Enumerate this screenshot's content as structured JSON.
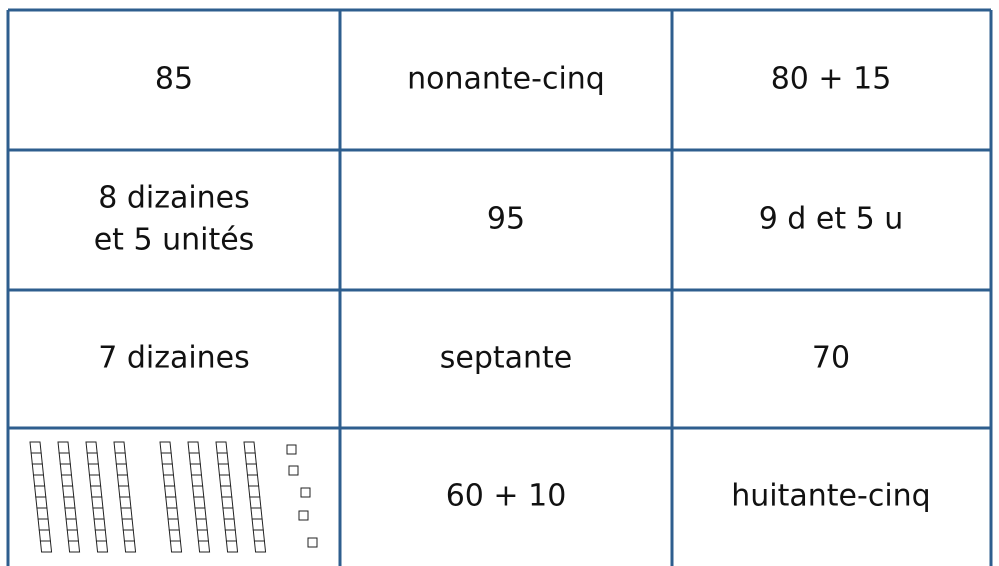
{
  "table": {
    "rows": [
      [
        "85",
        "nonante-cinq",
        "80 + 15"
      ],
      [
        [
          "8 dizaines",
          "et 5 unités"
        ],
        "95",
        "9 d et 5 u"
      ],
      [
        "7 dizaines",
        "septante",
        "70"
      ],
      [
        null,
        "60 + 10",
        "huitante-cinq"
      ]
    ]
  }
}
